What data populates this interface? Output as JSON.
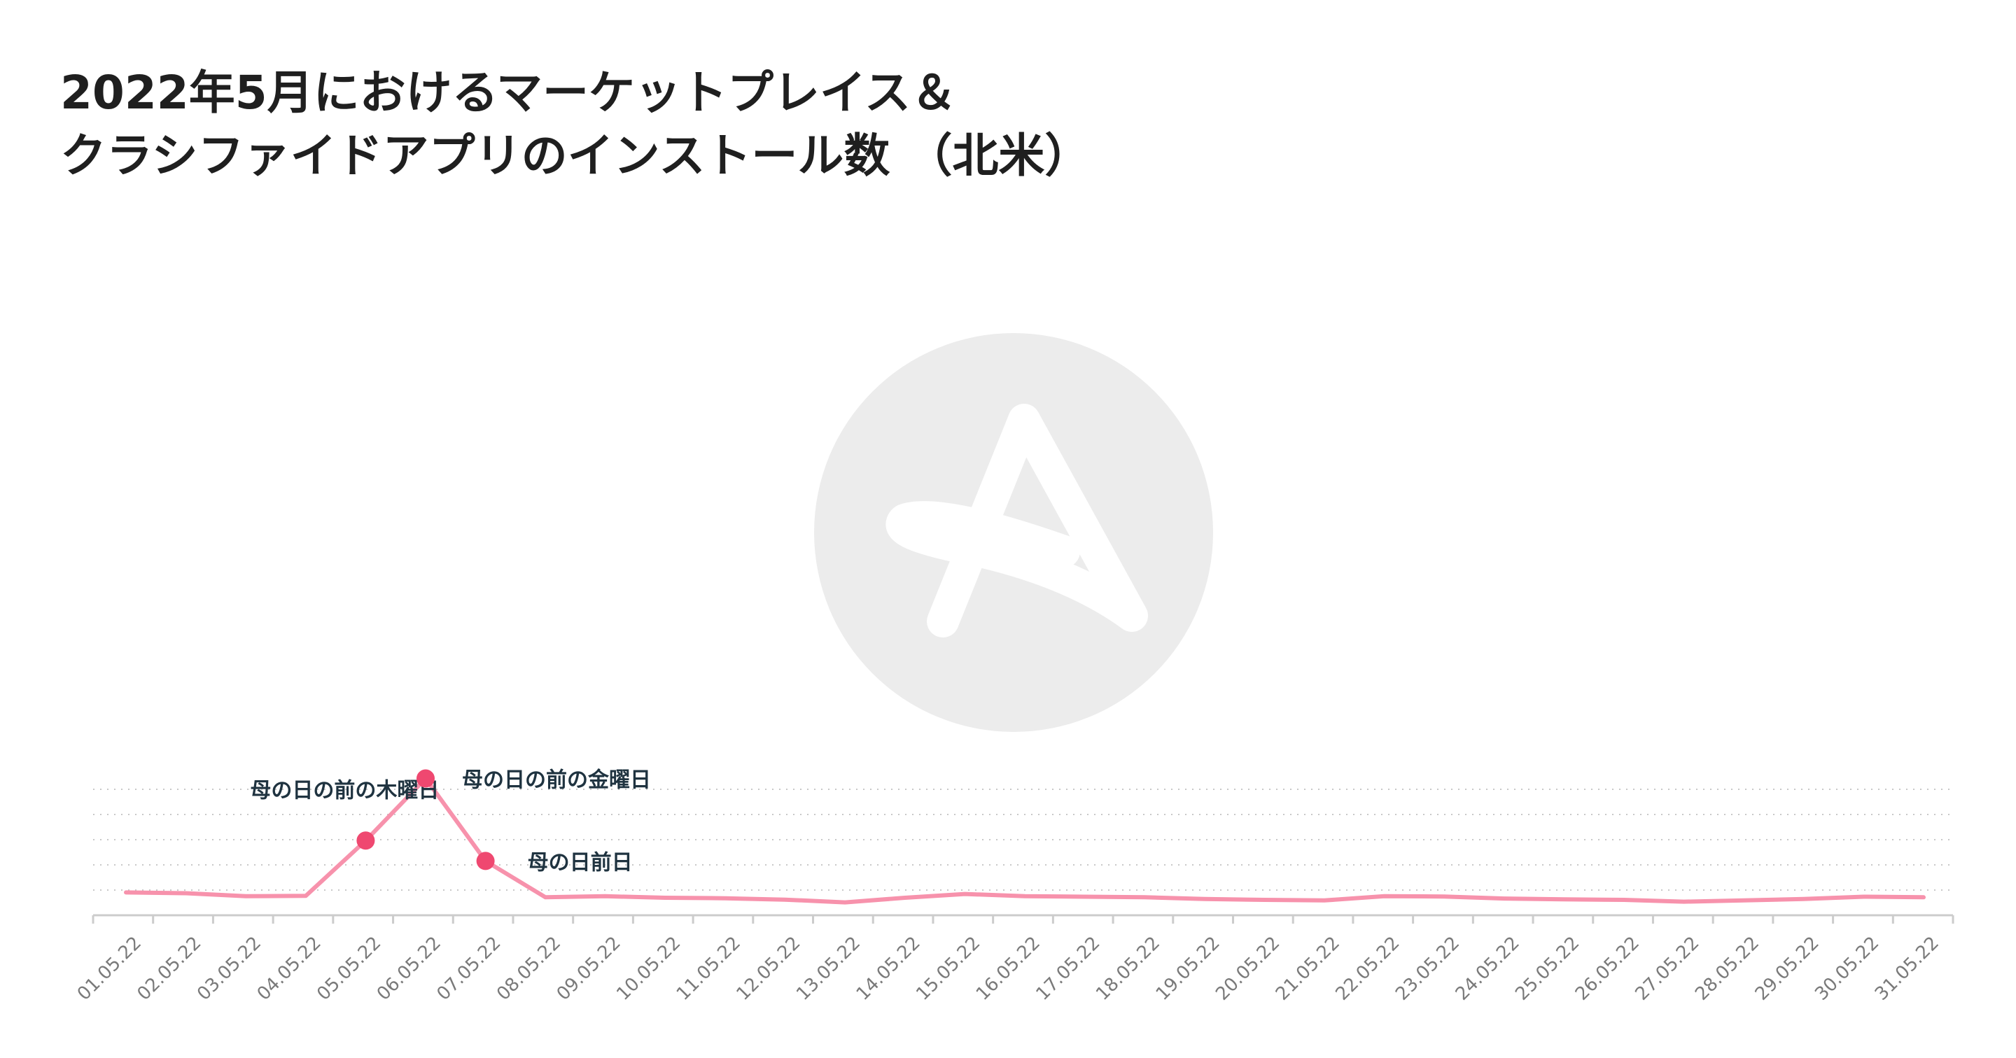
{
  "title": {
    "line1": "2022年5月におけるマーケットプレイス＆",
    "line2": "クラシファイドアプリのインストール数 （北米）"
  },
  "colors": {
    "line": "#f792ac",
    "marker": "#ef4870",
    "grid": "#c8c8c8",
    "axis": "#cccccc",
    "watermark": "#ececec"
  },
  "watermark_icon": "applift-a-logo-icon",
  "chart_data": {
    "type": "line",
    "title": "2022年5月におけるマーケットプレイス＆クラシファイドアプリのインストール数 （北米）",
    "xlabel": "",
    "ylabel": "",
    "ylim": [
      0,
      100
    ],
    "grid": true,
    "y_tick_labels_shown": false,
    "categories": [
      "01.05.22",
      "02.05.22",
      "03.05.22",
      "04.05.22",
      "05.05.22",
      "06.05.22",
      "07.05.22",
      "08.05.22",
      "09.05.22",
      "10.05.22",
      "11.05.22",
      "12.05.22",
      "13.05.22",
      "14.05.22",
      "15.05.22",
      "16.05.22",
      "17.05.22",
      "18.05.22",
      "19.05.22",
      "20.05.22",
      "21.05.22",
      "22.05.22",
      "23.05.22",
      "24.05.22",
      "25.05.22",
      "26.05.22",
      "27.05.22",
      "28.05.22",
      "29.05.22",
      "30.05.22",
      "31.05.22"
    ],
    "series": [
      {
        "values": [
          18.1,
          17.5,
          15.1,
          15.4,
          59.3,
          108.6,
          43.1,
          14.3,
          15.1,
          13.9,
          13.5,
          12.4,
          10.2,
          13.9,
          16.9,
          15.1,
          14.7,
          14.3,
          12.9,
          12.2,
          11.8,
          15.1,
          14.9,
          13.3,
          12.6,
          12.2,
          10.8,
          11.8,
          12.9,
          14.7,
          14.3
        ]
      }
    ],
    "annotations": [
      {
        "index": 4,
        "text": "母の日の前の木曜日"
      },
      {
        "index": 5,
        "text": "母の日の前の金曜日"
      },
      {
        "index": 6,
        "text": "母の日前日"
      }
    ]
  }
}
